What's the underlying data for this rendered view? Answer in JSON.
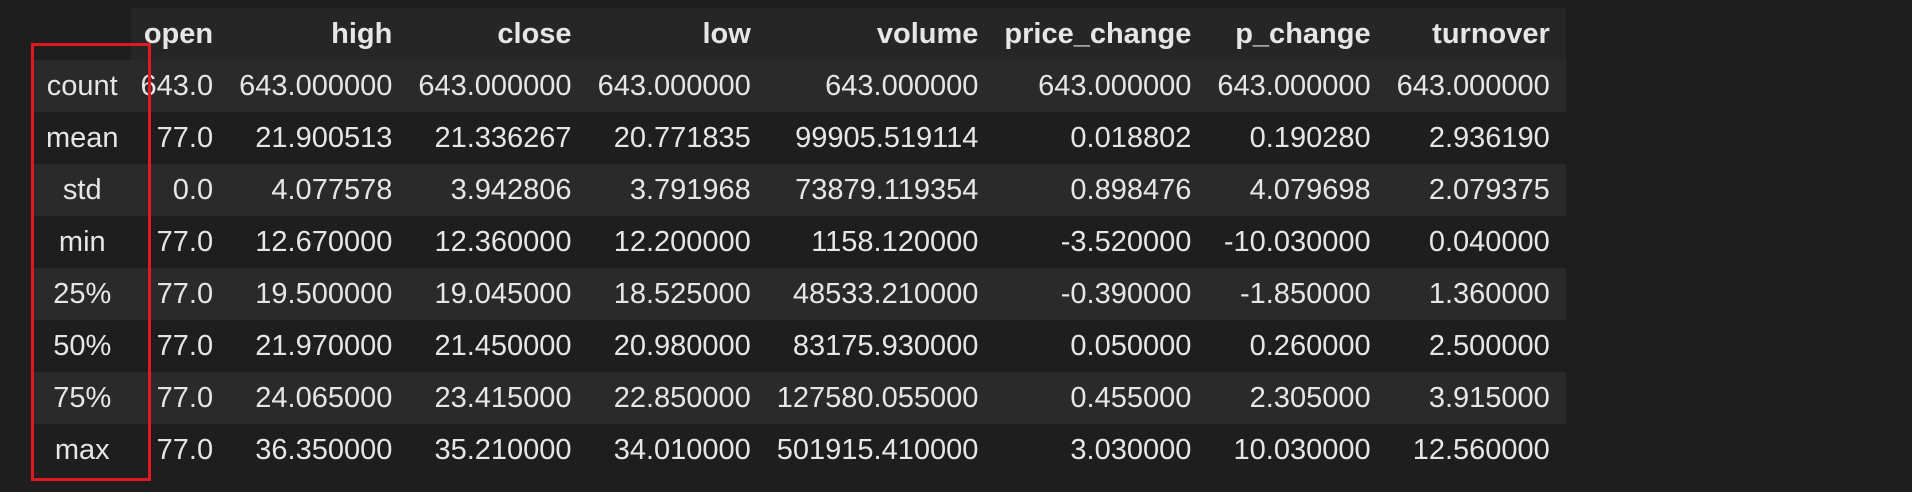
{
  "table": {
    "columns": [
      "open",
      "high",
      "close",
      "low",
      "volume",
      "price_change",
      "p_change",
      "turnover"
    ],
    "rows": [
      {
        "index": "count",
        "values": [
          "643.0",
          "643.000000",
          "643.000000",
          "643.000000",
          "643.000000",
          "643.000000",
          "643.000000",
          "643.000000"
        ]
      },
      {
        "index": "mean",
        "values": [
          "77.0",
          "21.900513",
          "21.336267",
          "20.771835",
          "99905.519114",
          "0.018802",
          "0.190280",
          "2.936190"
        ]
      },
      {
        "index": "std",
        "values": [
          "0.0",
          "4.077578",
          "3.942806",
          "3.791968",
          "73879.119354",
          "0.898476",
          "4.079698",
          "2.079375"
        ]
      },
      {
        "index": "min",
        "values": [
          "77.0",
          "12.670000",
          "12.360000",
          "12.200000",
          "1158.120000",
          "-3.520000",
          "-10.030000",
          "0.040000"
        ]
      },
      {
        "index": "25%",
        "values": [
          "77.0",
          "19.500000",
          "19.045000",
          "18.525000",
          "48533.210000",
          "-0.390000",
          "-1.850000",
          "1.360000"
        ]
      },
      {
        "index": "50%",
        "values": [
          "77.0",
          "21.970000",
          "21.450000",
          "20.980000",
          "83175.930000",
          "0.050000",
          "0.260000",
          "2.500000"
        ]
      },
      {
        "index": "75%",
        "values": [
          "77.0",
          "24.065000",
          "23.415000",
          "22.850000",
          "127580.055000",
          "0.455000",
          "2.305000",
          "3.915000"
        ]
      },
      {
        "index": "max",
        "values": [
          "77.0",
          "36.350000",
          "35.210000",
          "34.010000",
          "501915.410000",
          "3.030000",
          "10.030000",
          "12.560000"
        ]
      }
    ]
  },
  "colors": {
    "background": "#1e1e1e",
    "text": "#e6e6e6",
    "stripe": "#2a2a2a",
    "highlight": "#e0181f"
  }
}
